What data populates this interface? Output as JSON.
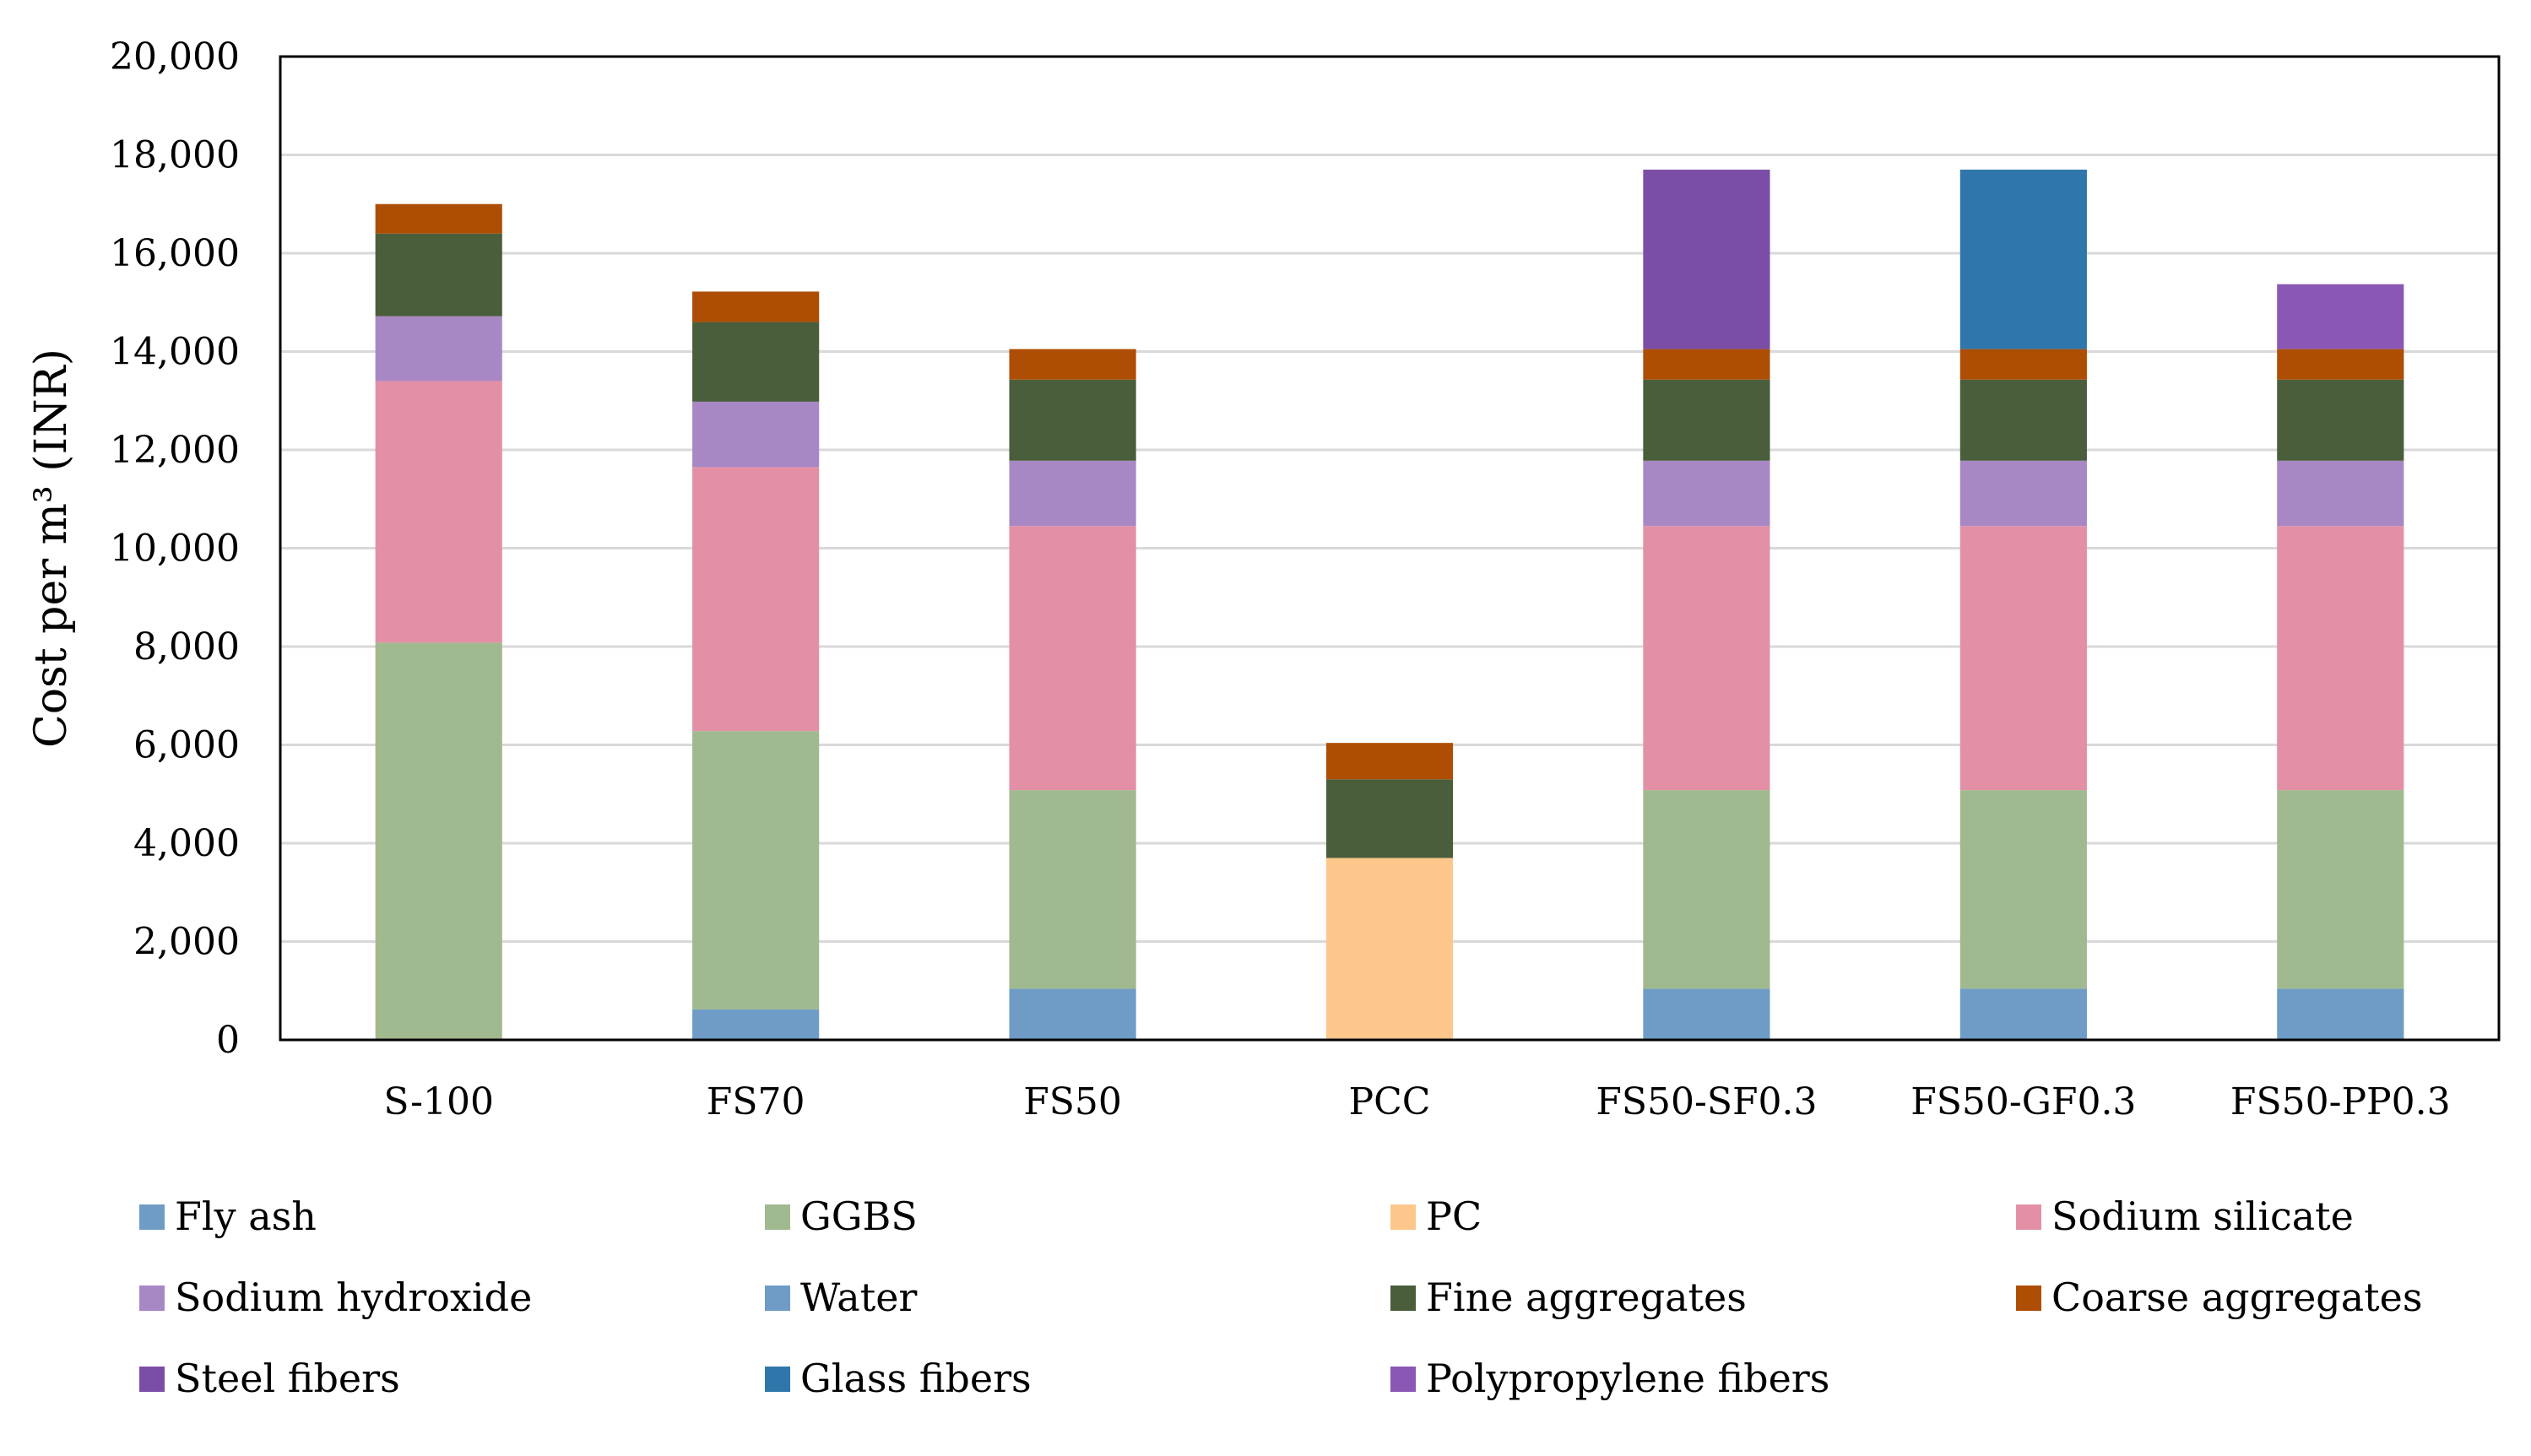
{
  "chart_data": {
    "type": "bar",
    "stacked": true,
    "title": "",
    "xlabel": "",
    "ylabel": "Cost per m³ (INR)",
    "ylim": [
      0,
      20000
    ],
    "yticks": [
      "0",
      "2,000",
      "4,000",
      "6,000",
      "8,000",
      "10,000",
      "12,000",
      "14,000",
      "16,000",
      "18,000",
      "20,000"
    ],
    "grid": true,
    "legend_position": "bottom",
    "categories": [
      "S-100",
      "FS70",
      "FS50",
      "PCC",
      "FS50-SF0.3",
      "FS50-GF0.3",
      "FS50-PP0.3"
    ],
    "series": [
      {
        "name": "Fly ash",
        "color": "#6E9CC6",
        "values": [
          0,
          620,
          1040,
          0,
          1040,
          1040,
          1040
        ]
      },
      {
        "name": "GGBS",
        "color": "#A1B98F",
        "values": [
          8080,
          5660,
          4040,
          0,
          4040,
          4040,
          4040
        ]
      },
      {
        "name": "PC",
        "color": "#FDC78C",
        "values": [
          0,
          0,
          0,
          3700,
          0,
          0,
          0
        ]
      },
      {
        "name": "Sodium silicate",
        "color": "#E390A6",
        "values": [
          5320,
          5370,
          5370,
          0,
          5370,
          5370,
          5370
        ]
      },
      {
        "name": "Sodium hydroxide",
        "color": "#A888C4",
        "values": [
          1320,
          1330,
          1330,
          0,
          1330,
          1330,
          1330
        ]
      },
      {
        "name": "Water",
        "color": "#6E9CC6",
        "values": [
          0,
          0,
          0,
          0,
          0,
          0,
          0
        ]
      },
      {
        "name": "Fine aggregates",
        "color": "#4A5E3C",
        "values": [
          1680,
          1620,
          1650,
          1600,
          1650,
          1650,
          1650
        ]
      },
      {
        "name": "Coarse aggregates",
        "color": "#AE4E04",
        "values": [
          600,
          620,
          620,
          740,
          620,
          620,
          620
        ]
      },
      {
        "name": "Steel fibers",
        "color": "#7A4EA6",
        "values": [
          0,
          0,
          0,
          0,
          3650,
          0,
          0
        ]
      },
      {
        "name": "Glass fibers",
        "color": "#2F77AA",
        "values": [
          0,
          0,
          0,
          0,
          0,
          3650,
          0
        ]
      },
      {
        "name": "Polypropylene fibers",
        "color": "#8A58B4",
        "values": [
          0,
          0,
          0,
          0,
          0,
          0,
          1320
        ]
      }
    ]
  }
}
